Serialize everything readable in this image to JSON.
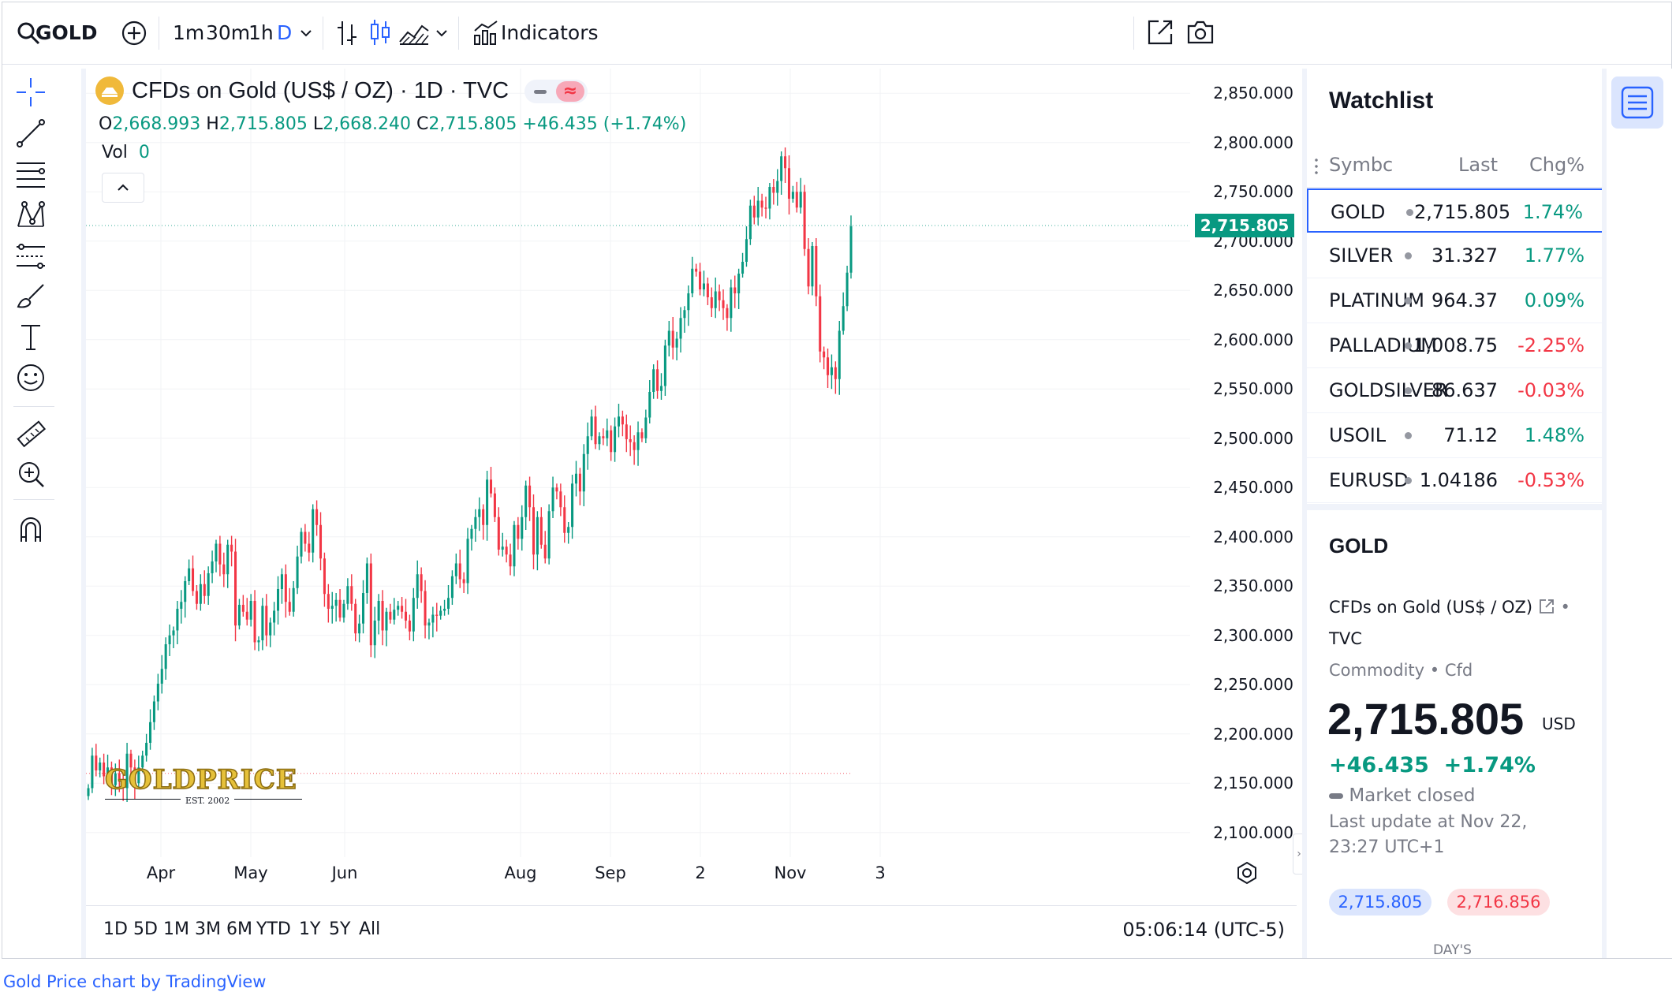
{
  "toolbar": {
    "symbol": "GOLD",
    "intervals": [
      "1m",
      "30m",
      "1h",
      "D"
    ],
    "indicators_label": "Indicators"
  },
  "legend": {
    "title": "CFDs on Gold (US$ / OZ) · 1D · TVC",
    "o_label": "O",
    "o_value": "2,668.993",
    "h_label": "H",
    "h_value": "2,715.805",
    "l_label": "L",
    "l_value": "2,668.240",
    "c_label": "C",
    "c_value": "2,715.805",
    "change": "+46.435 (+1.74%)",
    "vol_label": "Vol",
    "vol_value": "0"
  },
  "price_axis": {
    "ticks": [
      "2,850.000",
      "2,800.000",
      "2,750.000",
      "2,700.000",
      "2,650.000",
      "2,600.000",
      "2,550.000",
      "2,500.000",
      "2,450.000",
      "2,400.000",
      "2,350.000",
      "2,300.000",
      "2,250.000",
      "2,200.000",
      "2,150.000",
      "2,100.000"
    ],
    "current_price": "2,715.805"
  },
  "time_axis": {
    "labels": [
      "Apr",
      "May",
      "Jun",
      "Aug",
      "Sep",
      "2",
      "Nov",
      "3"
    ]
  },
  "ranges": [
    "1D",
    "5D",
    "1M",
    "3M",
    "6M",
    "YTD",
    "1Y",
    "5Y",
    "All"
  ],
  "clock": "05:06:14 (UTC-5)",
  "logo": {
    "text": "GOLDPRICE",
    "subtitle": "EST. 2002"
  },
  "watchlist": {
    "title": "Watchlist",
    "col_symbol": "Symbc",
    "col_last": "Last",
    "col_chg": "Chg%",
    "rows": [
      {
        "symbol": "GOLD",
        "last": "2,715.805",
        "chg": "1.74%",
        "dir": "pos"
      },
      {
        "symbol": "SILVER",
        "last": "31.327",
        "chg": "1.77%",
        "dir": "pos"
      },
      {
        "symbol": "PLATINUM",
        "last": "964.37",
        "chg": "0.09%",
        "dir": "pos"
      },
      {
        "symbol": "PALLADIUM",
        "last": "1,008.75",
        "chg": "-2.25%",
        "dir": "neg"
      },
      {
        "symbol": "GOLDSILVER",
        "last": "86.637",
        "chg": "-0.03%",
        "dir": "neg"
      },
      {
        "symbol": "USOIL",
        "last": "71.12",
        "chg": "1.48%",
        "dir": "pos"
      },
      {
        "symbol": "EURUSD",
        "last": "1.04186",
        "chg": "-0.53%",
        "dir": "neg"
      }
    ]
  },
  "details": {
    "symbol": "GOLD",
    "name": "CFDs on Gold (US$ / OZ)",
    "exchange": "TVC",
    "type": "Commodity",
    "subtype": "Cfd",
    "price": "2,715.805",
    "currency": "USD",
    "change": "+46.435",
    "change_pct": "+1.74%",
    "status": "Market closed",
    "last_update": "Last update at Nov 22,",
    "last_update_time": "23:27 UTC+1",
    "bid": "2,715.805",
    "ask": "2,716.856",
    "days_label": "DAY'S"
  },
  "footer": {
    "credit": "Gold Price chart by TradingView"
  },
  "colors": {
    "up": "#089981",
    "down": "#f23645",
    "accent": "#2962ff",
    "text": "#131722",
    "muted": "#787b86"
  },
  "chart_data": {
    "type": "candlestick",
    "title": "CFDs on Gold (US$ / OZ) · 1D · TVC",
    "ylim": [
      2075,
      2875
    ],
    "y_ticks": [
      2850,
      2800,
      2750,
      2700,
      2650,
      2600,
      2550,
      2500,
      2450,
      2400,
      2350,
      2300,
      2250,
      2200,
      2150,
      2100
    ],
    "x_labels": [
      "Apr",
      "May",
      "Jun",
      "Aug",
      "Sep",
      "2",
      "Nov",
      "3"
    ],
    "series": [
      {
        "name": "GOLD",
        "closes": [
          2145,
          2178,
          2163,
          2171,
          2157,
          2166,
          2148,
          2160,
          2153,
          2145,
          2180,
          2166,
          2150,
          2166,
          2178,
          2191,
          2212,
          2233,
          2251,
          2266,
          2291,
          2300,
          2305,
          2327,
          2334,
          2355,
          2368,
          2345,
          2332,
          2352,
          2340,
          2363,
          2375,
          2393,
          2372,
          2362,
          2392,
          2385,
          2310,
          2331,
          2324,
          2316,
          2335,
          2293,
          2295,
          2330,
          2300,
          2313,
          2325,
          2347,
          2362,
          2334,
          2324,
          2348,
          2380,
          2405,
          2393,
          2384,
          2428,
          2412,
          2378,
          2342,
          2327,
          2330,
          2336,
          2318,
          2332,
          2350,
          2332,
          2302,
          2312,
          2343,
          2373,
          2290,
          2315,
          2335,
          2305,
          2324,
          2316,
          2326,
          2330,
          2324,
          2315,
          2304,
          2338,
          2362,
          2345,
          2310,
          2313,
          2321,
          2320,
          2325,
          2327,
          2338,
          2360,
          2373,
          2357,
          2353,
          2398,
          2408,
          2420,
          2428,
          2412,
          2458,
          2444,
          2420,
          2387,
          2390,
          2382,
          2370,
          2412,
          2398,
          2420,
          2452,
          2430,
          2382,
          2420,
          2392,
          2378,
          2426,
          2450,
          2446,
          2430,
          2404,
          2410,
          2454,
          2464,
          2446,
          2484,
          2502,
          2522,
          2494,
          2502,
          2500,
          2508,
          2486,
          2512,
          2522,
          2514,
          2499,
          2496,
          2488,
          2506,
          2500,
          2521,
          2547,
          2570,
          2548,
          2553,
          2594,
          2609,
          2592,
          2601,
          2622,
          2630,
          2647,
          2672,
          2669,
          2651,
          2657,
          2643,
          2632,
          2649,
          2640,
          2632,
          2622,
          2653,
          2647,
          2667,
          2679,
          2702,
          2736,
          2724,
          2741,
          2734,
          2733,
          2755,
          2749,
          2761,
          2786,
          2774,
          2743,
          2750,
          2734,
          2750,
          2692,
          2654,
          2695,
          2644,
          2588,
          2582,
          2564,
          2572,
          2560,
          2609,
          2634,
          2668,
          2715
        ]
      }
    ],
    "reference_lines": [
      {
        "value": 2715.805,
        "style": "dotted",
        "label": "2,715.805"
      },
      {
        "value": 2160,
        "style": "dotted"
      }
    ]
  }
}
